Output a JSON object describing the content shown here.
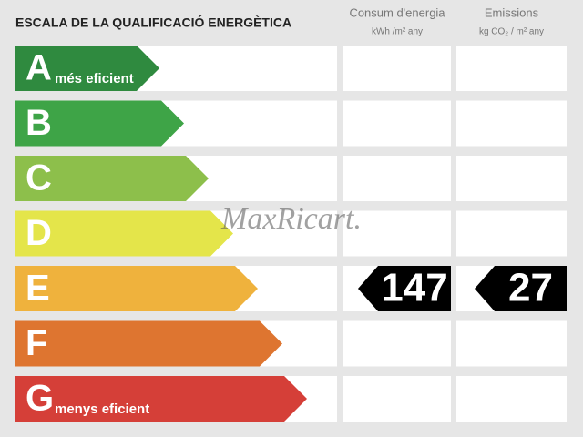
{
  "title": "ESCALA DE LA QUALIFICACIÓ ENERGÈTICA",
  "columns": [
    {
      "title": "Consum d'energia",
      "unit": "kWh /m² any"
    },
    {
      "title": "Emissions",
      "unit": "kg CO₂ / m² any"
    }
  ],
  "classes": [
    {
      "letter": "A",
      "label": "més eficient",
      "color": "#2f8a3f"
    },
    {
      "letter": "B",
      "label": null,
      "color": "#3ea447"
    },
    {
      "letter": "C",
      "label": null,
      "color": "#8dbf4b"
    },
    {
      "letter": "D",
      "label": null,
      "color": "#e4e54a"
    },
    {
      "letter": "E",
      "label": null,
      "color": "#efb23d"
    },
    {
      "letter": "F",
      "label": null,
      "color": "#de7530"
    },
    {
      "letter": "G",
      "label": "menys eficient",
      "color": "#d53f38"
    }
  ],
  "ratings": [
    {
      "class": "E",
      "value": 147
    },
    {
      "class": "E",
      "value": 27
    }
  ],
  "watermark": "MaxRicart."
}
